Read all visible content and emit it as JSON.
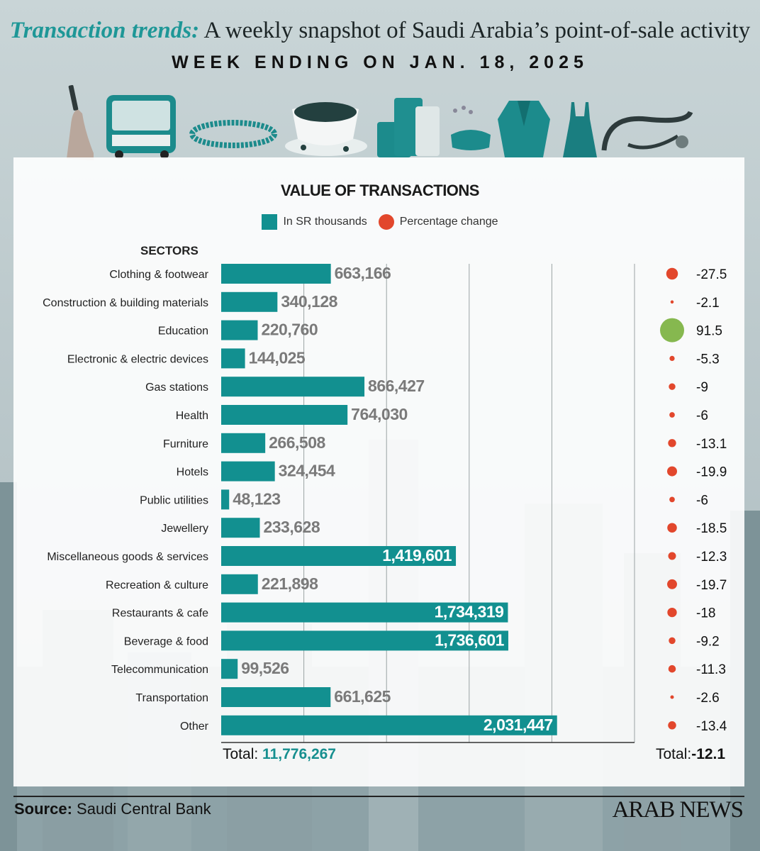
{
  "header": {
    "kicker": "Transaction trends:",
    "headline": "A weekly snapshot of Saudi Arabia’s point-of-sale activity",
    "subhead": "WEEK ENDING ON JAN. 18, 2025"
  },
  "icons": [
    "phone-in-hand-icon",
    "bus-icon",
    "bracelet-icon",
    "coffee-cup-icon",
    "luggage-icon",
    "sandals-icon",
    "jacket-icon",
    "dress-icon",
    "stethoscope-icon"
  ],
  "legend": {
    "value_label": "In SR thousands",
    "change_label": "Percentage change"
  },
  "sectors_heading": "SECTORS",
  "chart_data": {
    "type": "bar",
    "title": "VALUE OF TRANSACTIONS",
    "orientation": "horizontal",
    "categories": [
      "Clothing & footwear",
      "Construction & building materials",
      "Education",
      "Electronic & electric devices",
      "Gas stations",
      "Health",
      "Furniture",
      "Hotels",
      "Public utilities",
      "Jewellery",
      "Miscellaneous goods & services",
      "Recreation & culture",
      "Restaurants & cafe",
      "Beverage & food",
      "Telecommunication",
      "Transportation",
      "Other"
    ],
    "series": [
      {
        "name": "In SR thousands",
        "values": [
          663166,
          340128,
          220760,
          144025,
          866427,
          764030,
          266508,
          324454,
          48123,
          233628,
          1419601,
          221898,
          1734319,
          1736601,
          99526,
          661625,
          2031447
        ],
        "labels": [
          "663,166",
          "340,128",
          "220,760",
          "144,025",
          "866,427",
          "764,030",
          "266,508",
          "324,454",
          "48,123",
          "233,628",
          "1,419,601",
          "221,898",
          "1,734,319",
          "1,736,601",
          "99,526",
          "661,625",
          "2,031,447"
        ],
        "color": "#129090"
      },
      {
        "name": "Percentage change",
        "values": [
          -27.5,
          -2.1,
          91.5,
          -5.3,
          -9,
          -6,
          -13.1,
          -19.9,
          -6,
          -18.5,
          -12.3,
          -19.7,
          -18,
          -9.2,
          -11.3,
          -2.6,
          -13.4
        ],
        "labels": [
          "-27.5",
          "-2.1",
          "91.5",
          "-5.3",
          "-9",
          "-6",
          "-13.1",
          "-19.9",
          "-6",
          "-18.5",
          "-12.3",
          "-19.7",
          "-18",
          "-9.2",
          "-11.3",
          "-2.6",
          "-13.4"
        ],
        "negative_color": "#e2472c",
        "positive_color": "#86b84f"
      }
    ],
    "xlim": [
      0,
      2500000
    ],
    "grid": true,
    "legend_position": "top-center"
  },
  "totals": {
    "value_prefix": "Total:",
    "value_total": "11,776,267",
    "change_prefix": "Total:",
    "change_total": "-12.1"
  },
  "footer": {
    "source_label": "Source:",
    "source_value": "Saudi Central Bank",
    "brand": "ARAB NEWS"
  }
}
